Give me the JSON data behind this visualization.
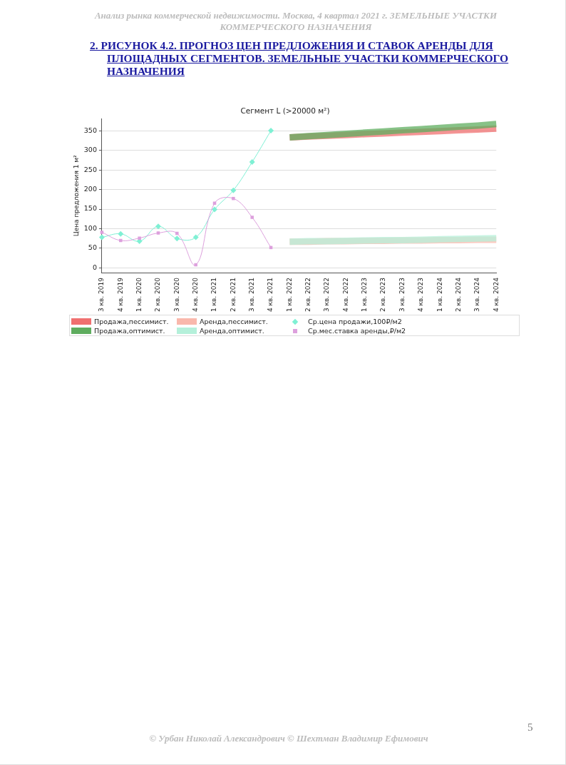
{
  "chart_data": {
    "type": "line",
    "title": "Сегмент L (>20000 м²)",
    "ylabel": "Цена предложения 1 м²",
    "annotations": [
      "Анализ рынка коммерческой недвижимости.  Москва, 4 квартал 2021 г.  ЗЕМЕЛЬНЫЕ УЧАСТКИ КОММЕРЧЕСКОГО НАЗНАЧЕНИЯ",
      "2. РИСУНОК 4.2. ПРОГНОЗ ЦЕН ПРЕДЛОЖЕНИЯ И СТАВОК АРЕНДЫ ДЛЯ ПЛОЩАДНЫХ СЕГМЕНТОВ.  ЗЕМЕЛЬНЫЕ УЧАСТКИ КОММЕРЧЕСКОГО НАЗНАЧЕНИЯ",
      "© Урбан Николай Александрович   © Шехтман Владимир Ефимович",
      "5"
    ],
    "categories": [
      "3 кв. 2019",
      "4 кв. 2019",
      "1 кв. 2020",
      "2 кв. 2020",
      "3 кв. 2020",
      "4 кв. 2020",
      "1 кв. 2021",
      "2 кв. 2021",
      "3 кв. 2021",
      "4 кв. 2021",
      "1 кв. 2022",
      "2 кв. 2022",
      "3 кв. 2022",
      "4 кв. 2022",
      "1 кв. 2023",
      "2 кв. 2023",
      "3 кв. 2023",
      "4 кв. 2023",
      "1 кв. 2024",
      "2 кв. 2024",
      "3 кв. 2024",
      "4 кв. 2024"
    ],
    "ylim": [
      -12,
      380
    ],
    "yticks": [
      0,
      50,
      100,
      150,
      200,
      250,
      300,
      350
    ],
    "grid": "y",
    "legend": "bottom",
    "series": [
      {
        "name": "Продажа,пессимист.",
        "color": "#f07070",
        "marker": "none",
        "values": [
          null,
          null,
          null,
          null,
          null,
          null,
          null,
          null,
          null,
          null,
          333,
          335,
          337,
          339,
          341,
          343,
          345,
          347,
          349,
          351,
          353,
          355
        ]
      },
      {
        "name": "Продажа,оптимист.",
        "color": "#5fad5f",
        "marker": "none",
        "values": [
          null,
          null,
          null,
          null,
          null,
          null,
          null,
          null,
          null,
          null,
          333,
          336,
          339,
          342,
          345,
          348,
          351,
          354,
          357,
          360,
          363,
          367
        ]
      },
      {
        "name": "Аренда,пессимист.",
        "color": "#f9b8ac",
        "marker": "none",
        "values": [
          null,
          null,
          null,
          null,
          null,
          null,
          null,
          null,
          null,
          null,
          67,
          67,
          68,
          68,
          69,
          69,
          70,
          70,
          71,
          71,
          72,
          72
        ]
      },
      {
        "name": "Аренда,оптимист.",
        "color": "#b5f0da",
        "marker": "none",
        "values": [
          null,
          null,
          null,
          null,
          null,
          null,
          null,
          null,
          null,
          null,
          67,
          68,
          68,
          69,
          70,
          71,
          71,
          72,
          73,
          74,
          75,
          76
        ]
      },
      {
        "name": "Ср.цена продажи,100₽/м2",
        "color": "#7ff0d4",
        "marker": "diamond",
        "values": [
          78,
          87,
          68,
          106,
          75,
          78,
          149,
          198,
          270,
          350,
          null,
          null,
          null,
          null,
          null,
          null,
          null,
          null,
          null,
          null,
          null,
          null
        ]
      },
      {
        "name": "Ср.мес.ставка аренды,₽/м2",
        "color": "#dda0dd",
        "marker": "square",
        "values": [
          91,
          70,
          76,
          89,
          88,
          8,
          165,
          177,
          129,
          52,
          null,
          null,
          null,
          null,
          null,
          null,
          null,
          null,
          null,
          null,
          null,
          null
        ]
      }
    ]
  }
}
